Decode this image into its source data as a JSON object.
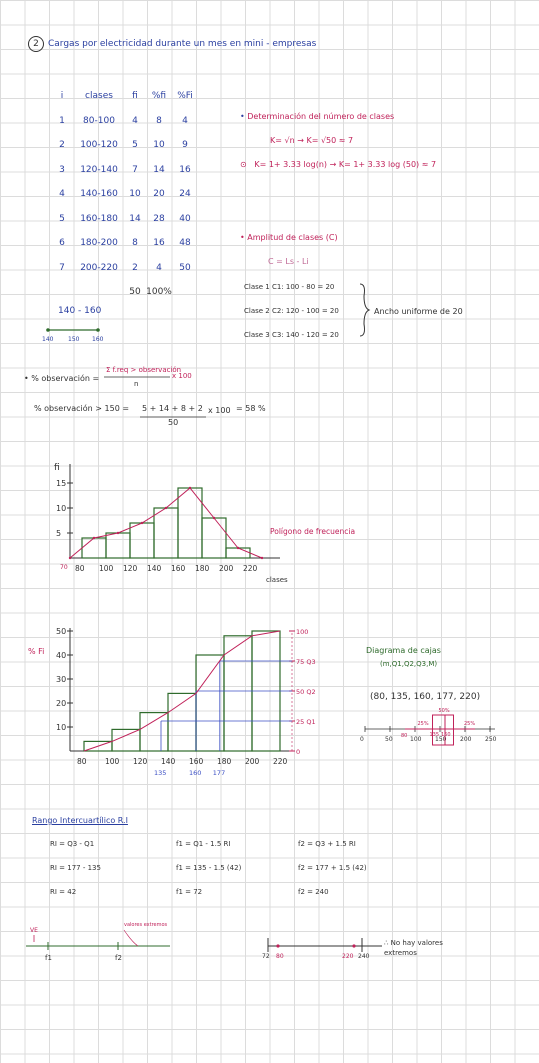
{
  "title": {
    "number": "2",
    "text": "Cargas por electricidad durante un mes en mini - empresas"
  },
  "table": {
    "headers": [
      "i",
      "clases",
      "fi",
      "%fi",
      "%Fi"
    ],
    "rows": [
      [
        "1",
        "80-100",
        "4",
        "8",
        "4"
      ],
      [
        "2",
        "100-120",
        "5",
        "10",
        "9"
      ],
      [
        "3",
        "120-140",
        "7",
        "14",
        "16"
      ],
      [
        "4",
        "140-160",
        "10",
        "20",
        "24"
      ],
      [
        "5",
        "160-180",
        "14",
        "28",
        "40"
      ],
      [
        "6",
        "180-200",
        "8",
        "16",
        "48"
      ],
      [
        "7",
        "200-220",
        "2",
        "4",
        "50"
      ]
    ],
    "totals": [
      "",
      "",
      "50",
      "100%",
      ""
    ]
  },
  "class_example": {
    "label": "140 - 160",
    "ticks": [
      "140",
      "150",
      "160"
    ]
  },
  "notes": {
    "num_clases_title": "Determinación del número de clases",
    "sqrt_formula": "K= √n  →  K= √50 ≈ 7",
    "sturges_formula": "K= 1+ 3.33 log(n)  →  K= 1+ 3.33 log (50) ≈ 7",
    "amplitud_title": "Amplitud de clases (C)",
    "amplitud_formula": "C = Ls - Li",
    "clase1": "Clase 1 C1: 100 - 80 = 20",
    "clase2": "Clase 2 C2: 120 - 100 = 20",
    "clase3": "Clase 3 C3: 140 - 120 = 20",
    "ancho": "Ancho uniforme de 20"
  },
  "observacion": {
    "label": "% observación =",
    "numerator": "Σ f.req > observación",
    "denominator": "n",
    "times": "x 100",
    "calc_label": "% observación > 150 =",
    "calc_num": "5 + 14 + 8 + 2",
    "calc_den": "50",
    "calc_times": "x 100",
    "calc_result": "=  58 %"
  },
  "chart_data": [
    {
      "type": "bar",
      "title": "",
      "ylabel": "fi",
      "xlabel": "clases",
      "categories": [
        "80-100",
        "100-120",
        "120-140",
        "140-160",
        "160-180",
        "180-200",
        "200-220"
      ],
      "values": [
        4,
        5,
        7,
        10,
        14,
        8,
        2
      ],
      "series": [
        {
          "name": "Polígono de frecuencia",
          "x": [
            70,
            90,
            110,
            130,
            150,
            170,
            190,
            210,
            230
          ],
          "values": [
            0,
            4,
            5,
            7,
            10,
            14,
            8,
            2,
            0
          ]
        }
      ],
      "yticks": [
        "5",
        "10",
        "15"
      ],
      "xticks": [
        "80",
        "100",
        "120",
        "140",
        "160",
        "180",
        "200",
        "220"
      ],
      "extra_tick": "70",
      "ylim": [
        0,
        18
      ],
      "grid": false,
      "colors": {
        "bars": "#2f6b2c",
        "polygon": "#c0225a",
        "axes": "#333333"
      }
    },
    {
      "type": "bar",
      "title": "",
      "ylabel": "% Fi",
      "categories": [
        "80-100",
        "100-120",
        "120-140",
        "140-160",
        "160-180",
        "180-200",
        "200-220"
      ],
      "values": [
        4,
        9,
        16,
        24,
        40,
        48,
        50
      ],
      "series": [
        {
          "name": "ojiva",
          "x": [
            80,
            100,
            120,
            140,
            160,
            180,
            200,
            220
          ],
          "values": [
            0,
            4,
            9,
            16,
            24,
            40,
            48,
            50
          ]
        }
      ],
      "yticks": [
        "10",
        "20",
        "30",
        "40",
        "50"
      ],
      "xticks": [
        "80",
        "100",
        "120",
        "140",
        "160",
        "180",
        "200",
        "220"
      ],
      "quartile_ticks": [
        "135",
        "160",
        "177"
      ],
      "right_axis": [
        "0",
        "25 Q1",
        "50 Q2",
        "75 Q3",
        "100"
      ],
      "ylim": [
        0,
        52
      ],
      "colors": {
        "bars": "#2f6b2c",
        "ogive": "#c0225a",
        "quartile_lines": "#3b4fc4"
      }
    }
  ],
  "boxplot": {
    "title": "Diagrama de cajas",
    "subtitle": "(m,Q1,Q2,Q3,M)",
    "values_text": "(80, 135, 160, 177, 220)",
    "axis_ticks": [
      "0",
      "50",
      "100",
      "150",
      "200",
      "250"
    ],
    "labels": [
      "80",
      "135",
      "160",
      "25%",
      "25%",
      "50%"
    ],
    "five_numbers": [
      80,
      135,
      160,
      177,
      220
    ]
  },
  "rango": {
    "title": "Rango Intercuartílico R.I",
    "col1": [
      "RI = Q3 - Q1",
      "RI = 177 - 135",
      "RI = 42"
    ],
    "col2": [
      "f1 = Q1 - 1.5 RI",
      "f1 = 135 - 1.5 (42)",
      "f1 = 72"
    ],
    "col3": [
      "f2 = Q3 + 1.5 RI",
      "f2 = 177 + 1.5 (42)",
      "f2 = 240"
    ],
    "line1_labels": [
      "VE",
      "f1",
      "f2",
      "valores extremos"
    ],
    "line2_labels": [
      "72",
      "80",
      "220",
      "240"
    ],
    "conclusion": "∴ No hay valores extremos"
  }
}
